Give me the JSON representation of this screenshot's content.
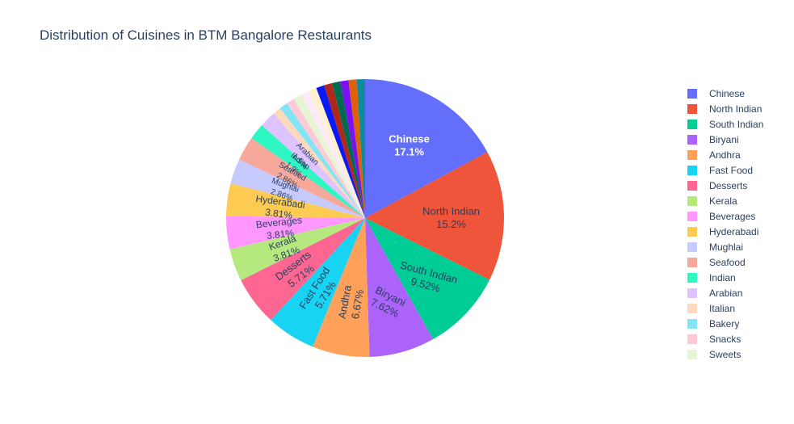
{
  "chart_data": {
    "type": "pie",
    "title": "Distribution of Cuisines in BTM Bangalore Restaurants",
    "slices": [
      {
        "label": "Chinese",
        "value": 17.1,
        "text": "17.1%",
        "color": "#636efa",
        "label_color": "#ffffff"
      },
      {
        "label": "North Indian",
        "value": 15.2,
        "text": "15.2%",
        "color": "#EF553B",
        "label_color": "#2a3f5f"
      },
      {
        "label": "South Indian",
        "value": 9.52,
        "text": "9.52%",
        "color": "#00cc96",
        "label_color": "#2a3f5f"
      },
      {
        "label": "Biryani",
        "value": 7.62,
        "text": "7.62%",
        "color": "#ab63fa",
        "label_color": "#2a3f5f"
      },
      {
        "label": "Andhra",
        "value": 6.67,
        "text": "6.67%",
        "color": "#FFA15A",
        "label_color": "#2a3f5f"
      },
      {
        "label": "Fast Food",
        "value": 5.71,
        "text": "5.71%",
        "color": "#19d3f3",
        "label_color": "#2a3f5f"
      },
      {
        "label": "Desserts",
        "value": 5.71,
        "text": "5.71%",
        "color": "#FF6692",
        "label_color": "#2a3f5f"
      },
      {
        "label": "Kerala",
        "value": 3.81,
        "text": "3.81%",
        "color": "#B6E880",
        "label_color": "#2a3f5f"
      },
      {
        "label": "Beverages",
        "value": 3.81,
        "text": "3.81%",
        "color": "#FF97FF",
        "label_color": "#2a3f5f"
      },
      {
        "label": "Hyderabadi",
        "value": 3.81,
        "text": "3.81%",
        "color": "#FECB52",
        "label_color": "#2a3f5f"
      },
      {
        "label": "Mughlai",
        "value": 2.86,
        "text": "2.86%",
        "color": "#c6caff",
        "label_color": "#2a3f5f"
      },
      {
        "label": "Seafood",
        "value": 2.86,
        "text": "2.86%",
        "color": "#f6a99b",
        "label_color": "#2a3f5f"
      },
      {
        "label": "Indian",
        "value": 1.9,
        "text": "1.9%",
        "color": "#2ef7c3",
        "label_color": "#2a3f5f"
      },
      {
        "label": "Arabian",
        "value": 1.9,
        "text": "1.9%",
        "color": "#ddc4ff",
        "label_color": "#2a3f5f"
      },
      {
        "label": "Italian",
        "value": 0.952,
        "text": "",
        "color": "#ffd9bd",
        "label_color": "#2a3f5f"
      },
      {
        "label": "Bakery",
        "value": 0.952,
        "text": "",
        "color": "#83e4f6",
        "label_color": "#2a3f5f"
      },
      {
        "label": "Snacks",
        "value": 0.952,
        "text": "",
        "color": "#ffcad8",
        "label_color": "#2a3f5f"
      },
      {
        "label": "Sweets",
        "value": 0.952,
        "text": "",
        "color": "#e6f6d4",
        "label_color": "#2a3f5f"
      },
      {
        "label": "",
        "value": 0.952,
        "text": "",
        "color": "#fbeaf7",
        "label_color": "#2a3f5f"
      },
      {
        "label": "",
        "value": 0.952,
        "text": "",
        "color": "#fff1cf",
        "label_color": "#2a3f5f"
      },
      {
        "label": "",
        "value": 0.952,
        "text": "",
        "color": "#0b19f4",
        "label_color": "#ffffff"
      },
      {
        "label": "",
        "value": 0.952,
        "text": "",
        "color": "#b0281b",
        "label_color": "#ffffff"
      },
      {
        "label": "",
        "value": 0.952,
        "text": "",
        "color": "#006b4f",
        "label_color": "#ffffff"
      },
      {
        "label": "",
        "value": 0.952,
        "text": "",
        "color": "#7a11f1",
        "label_color": "#ffffff"
      },
      {
        "label": "",
        "value": 0.952,
        "text": "",
        "color": "#e06008",
        "label_color": "#ffffff"
      },
      {
        "label": "",
        "value": 0.952,
        "text": "",
        "color": "#0f8b9e",
        "label_color": "#ffffff"
      }
    ]
  }
}
